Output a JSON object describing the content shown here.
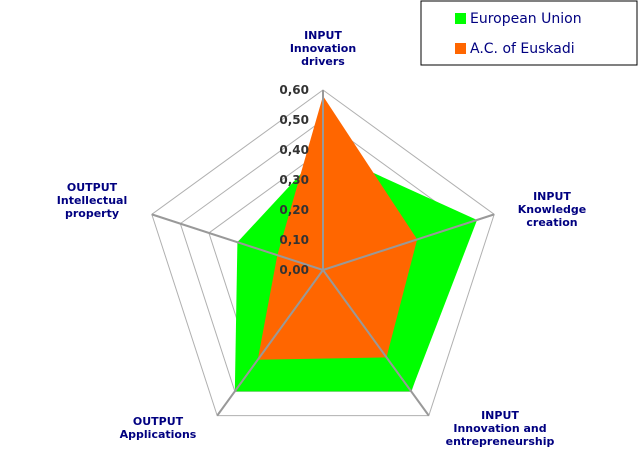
{
  "chart_data": {
    "type": "radar",
    "axes": [
      [
        "INPUT",
        "Innovation",
        "drivers"
      ],
      [
        "INPUT",
        "Knowledge",
        "creation"
      ],
      [
        "INPUT",
        "Innovation and",
        "entrepreneurship"
      ],
      [
        "OUTPUT",
        "Applications"
      ],
      [
        "OUTPUT",
        "Intellectual",
        "property"
      ]
    ],
    "rlim": [
      0,
      0.6
    ],
    "ticks": [
      "0,00",
      "0,10",
      "0,20",
      "0,30",
      "0,40",
      "0,50",
      "0,60"
    ],
    "series": [
      {
        "name": "European Union",
        "color": "#00FF00",
        "values": [
          0.4,
          0.54,
          0.5,
          0.5,
          0.3
        ]
      },
      {
        "name": "A.C. of Euskadi",
        "color": "#FF6600",
        "values": [
          0.58,
          0.33,
          0.36,
          0.37,
          0.16
        ]
      }
    ],
    "grid": true,
    "legend": "top-right"
  }
}
